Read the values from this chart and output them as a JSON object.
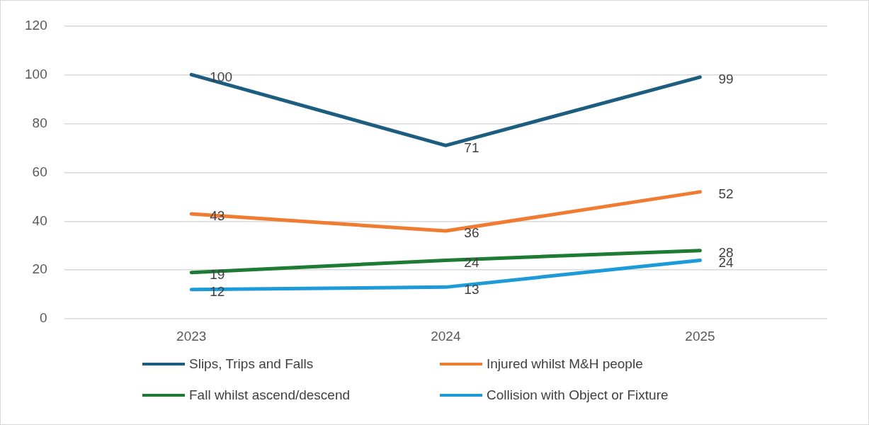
{
  "chart_data": {
    "type": "line",
    "categories": [
      "2023",
      "2024",
      "2025"
    ],
    "series": [
      {
        "name": "Slips, Trips and Falls",
        "color": "#1d5e80",
        "values": [
          100,
          71,
          99
        ]
      },
      {
        "name": "Injured whilst M&H people",
        "color": "#f07c32",
        "values": [
          43,
          36,
          52
        ]
      },
      {
        "name": "Fall whilst ascend/descend",
        "color": "#1f7a33",
        "values": [
          19,
          24,
          28
        ]
      },
      {
        "name": "Collision with Object or Fixture",
        "color": "#1c9bd8",
        "values": [
          12,
          13,
          24
        ]
      }
    ],
    "ylim": [
      0,
      120
    ],
    "yticks": [
      0,
      20,
      40,
      60,
      80,
      100,
      120
    ],
    "grid": "y",
    "legend": "bottom",
    "marker": "none",
    "line_style": "solid",
    "data_labels": true
  }
}
